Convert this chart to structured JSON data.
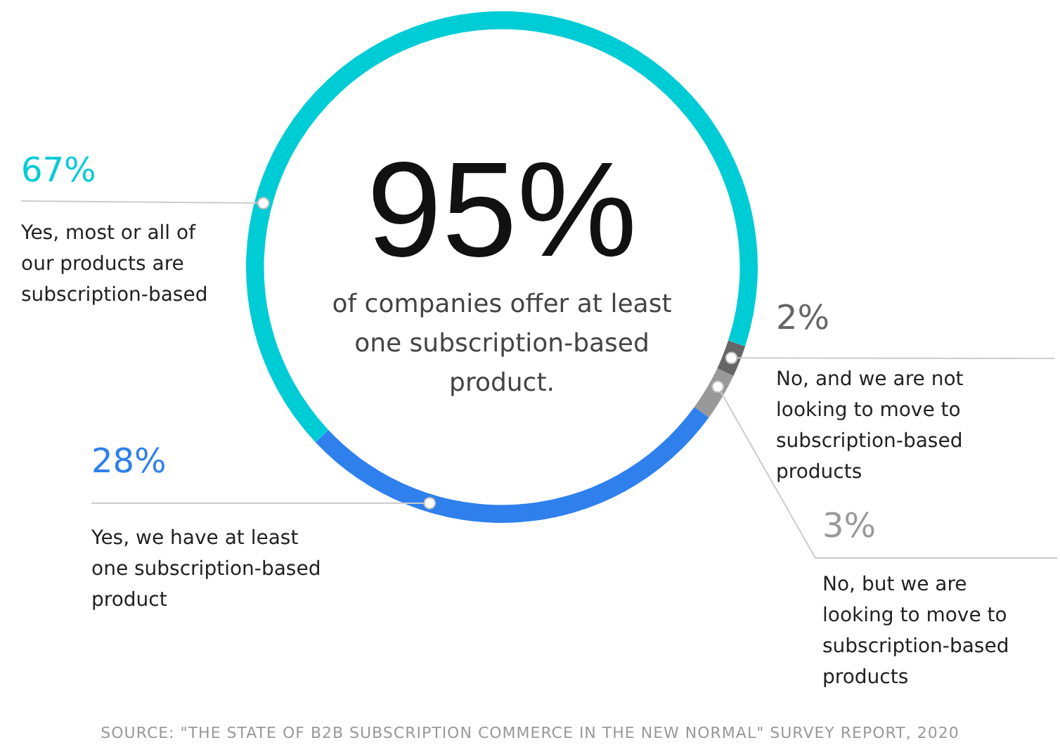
{
  "chart_data": {
    "type": "donut",
    "title": "95%",
    "subtitle": "of companies offer at least one subscription-based product.",
    "categories": [
      "No, and we are not looking to move to subscription-based products",
      "No, but we are looking to move to subscription-based products",
      "Yes, we have at least one subscription-based product",
      "Yes, most or all of our products are subscription-based"
    ],
    "values": [
      2,
      3,
      28,
      67
    ],
    "colors": [
      "#666666",
      "#999999",
      "#2f80ed",
      "#00ccd6"
    ],
    "value_labels": [
      "2%",
      "3%",
      "28%",
      "67%"
    ],
    "annotations": [
      "SOURCE: \"THE STATE OF B2B SUBSCRIPTION COMMERCE IN THE NEW NORMAL\" SURVEY REPORT, 2020"
    ]
  }
}
